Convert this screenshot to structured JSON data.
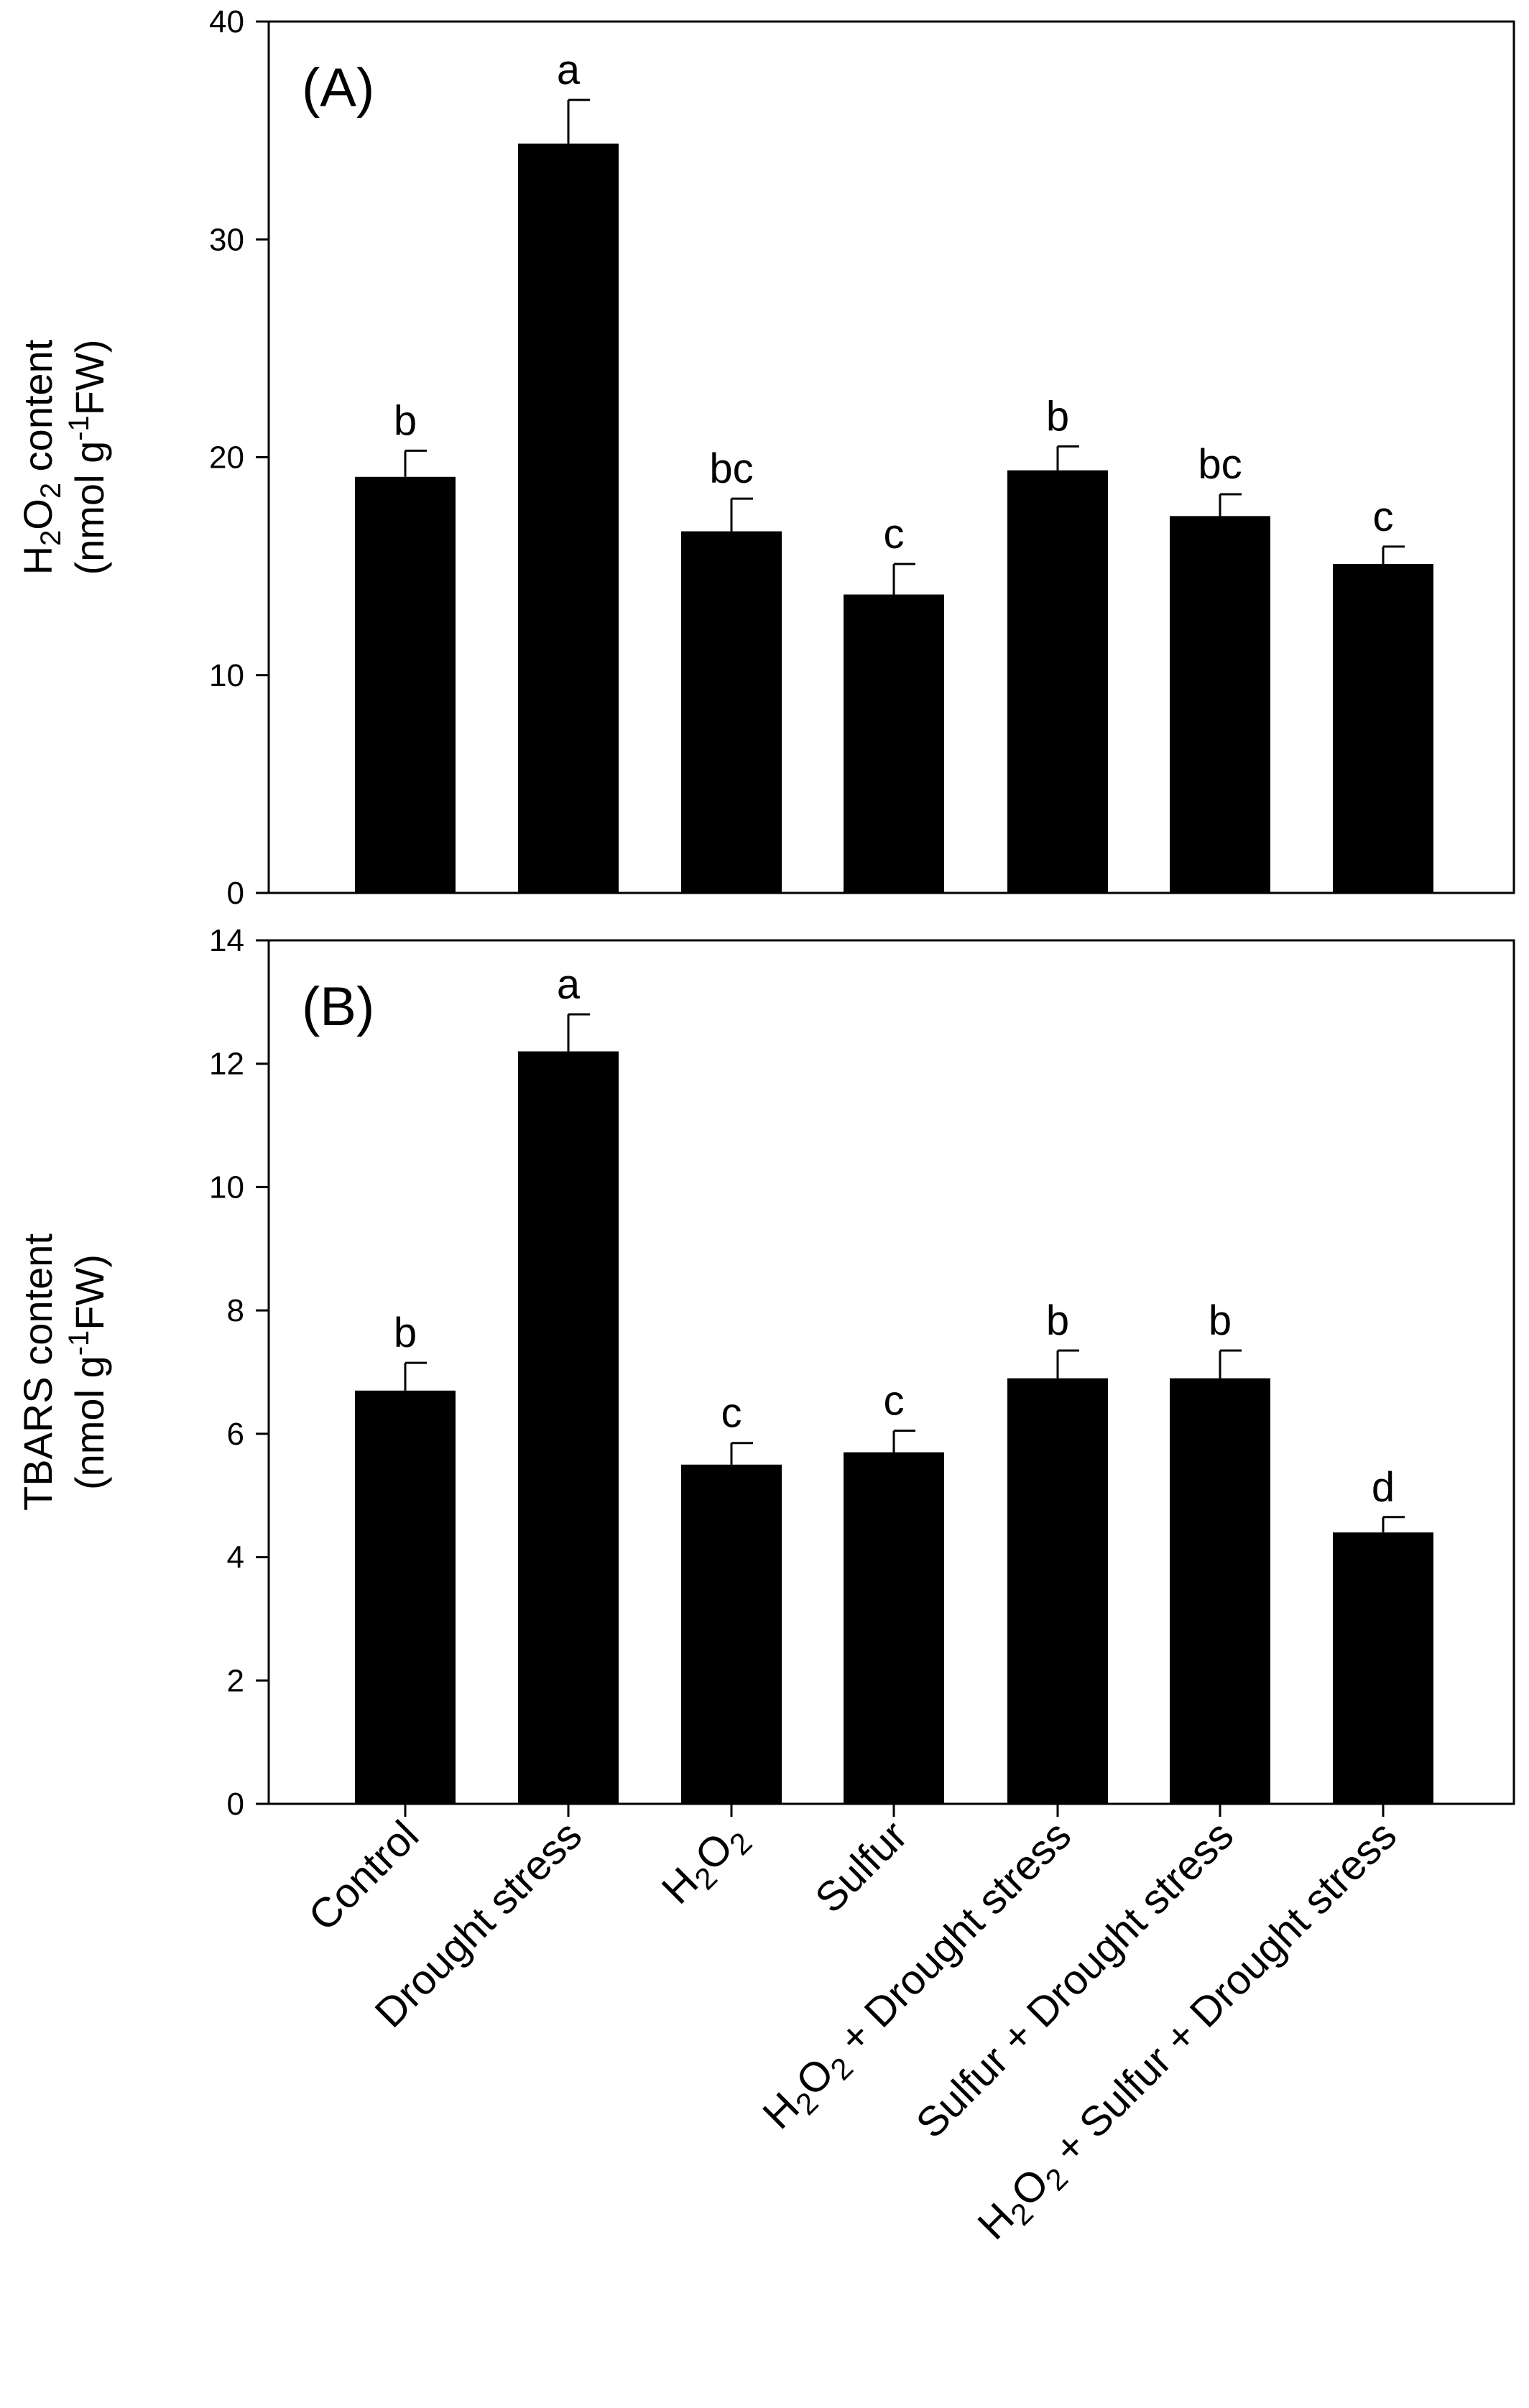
{
  "chart_data": [
    {
      "type": "bar",
      "panel_label": "(A)",
      "title": "",
      "xlabel": "",
      "ylabel_line1": "H2O2 content",
      "ylabel_line1_parts": [
        "H",
        "2",
        "O",
        "2",
        " content"
      ],
      "ylabel_line2": "(nmol g-1FW)",
      "ylabel_line2_parts": [
        "(nmol g",
        "-1",
        "FW)"
      ],
      "ylim": [
        0,
        40
      ],
      "yticks": [
        0,
        10,
        20,
        30,
        40
      ],
      "categories": [
        "Control",
        "Drought stress",
        "H2O2",
        "Sulfur",
        "H2O2 + Drought stress",
        "Sulfur + Drought stress",
        "H2O2 + Sulfur + Drought stress"
      ],
      "values": [
        19.1,
        34.4,
        16.6,
        13.7,
        19.4,
        17.3,
        15.1
      ],
      "errors": [
        1.2,
        2.0,
        1.5,
        1.4,
        1.1,
        1.0,
        0.8
      ],
      "letters": [
        "b",
        "a",
        "bc",
        "c",
        "b",
        "bc",
        "c"
      ],
      "bar_color": "#000000",
      "grid": false
    },
    {
      "type": "bar",
      "panel_label": "(B)",
      "title": "",
      "xlabel": "",
      "ylabel_line1": "TBARS content",
      "ylabel_line2": "(nmol g-1FW)",
      "ylabel_line2_parts": [
        "(nmol g",
        "-1",
        "FW)"
      ],
      "ylim": [
        0,
        14
      ],
      "yticks": [
        0,
        2,
        4,
        6,
        8,
        10,
        12,
        14
      ],
      "categories": [
        "Control",
        "Drought stress",
        "H2O2",
        "Sulfur",
        "H2O2 + Drought stress",
        "Sulfur + Drought stress",
        "H2O2 + Sulfur + Drought stress"
      ],
      "values": [
        6.7,
        12.2,
        5.5,
        5.7,
        6.9,
        6.9,
        4.4
      ],
      "errors": [
        0.45,
        0.6,
        0.35,
        0.35,
        0.45,
        0.45,
        0.25
      ],
      "letters": [
        "b",
        "a",
        "c",
        "c",
        "b",
        "b",
        "d"
      ],
      "bar_color": "#000000",
      "grid": false
    }
  ],
  "category_label_parts": [
    [
      {
        "t": "Control"
      }
    ],
    [
      {
        "t": "Drought stress"
      }
    ],
    [
      {
        "t": "H"
      },
      {
        "t": "2",
        "sub": true
      },
      {
        "t": "O"
      },
      {
        "t": "2",
        "sub": true
      }
    ],
    [
      {
        "t": "Sulfur"
      }
    ],
    [
      {
        "t": "H"
      },
      {
        "t": "2",
        "sub": true
      },
      {
        "t": "O"
      },
      {
        "t": "2",
        "sub": true
      },
      {
        "t": " + Drought stress"
      }
    ],
    [
      {
        "t": "Sulfur + Drought stress"
      }
    ],
    [
      {
        "t": "H"
      },
      {
        "t": "2",
        "sub": true
      },
      {
        "t": "O"
      },
      {
        "t": "2",
        "sub": true
      },
      {
        "t": " + Sulfur + Drought stress"
      }
    ]
  ]
}
